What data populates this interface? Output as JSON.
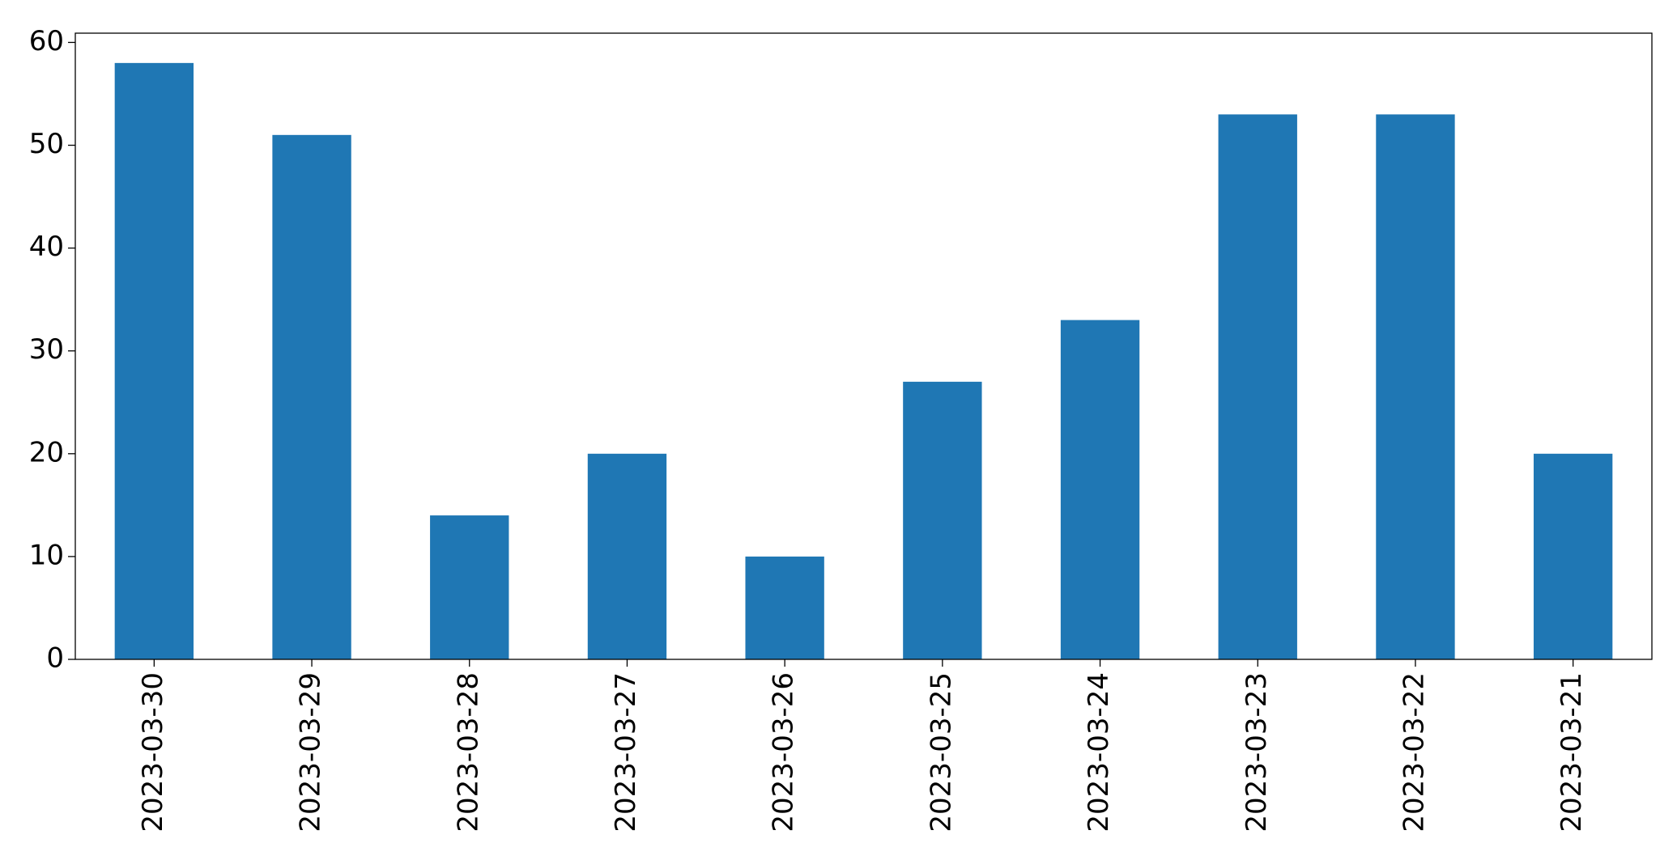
{
  "chart_data": {
    "type": "bar",
    "categories": [
      "2023-03-30",
      "2023-03-29",
      "2023-03-28",
      "2023-03-27",
      "2023-03-26",
      "2023-03-25",
      "2023-03-24",
      "2023-03-23",
      "2023-03-22",
      "2023-03-21"
    ],
    "values": [
      58,
      51,
      14,
      20,
      10,
      27,
      33,
      53,
      53,
      20
    ],
    "color": "#1f77b4",
    "ylim": [
      0,
      60.9
    ],
    "yticks": [
      0,
      10,
      20,
      30,
      40,
      50,
      60
    ],
    "grid": false
  }
}
